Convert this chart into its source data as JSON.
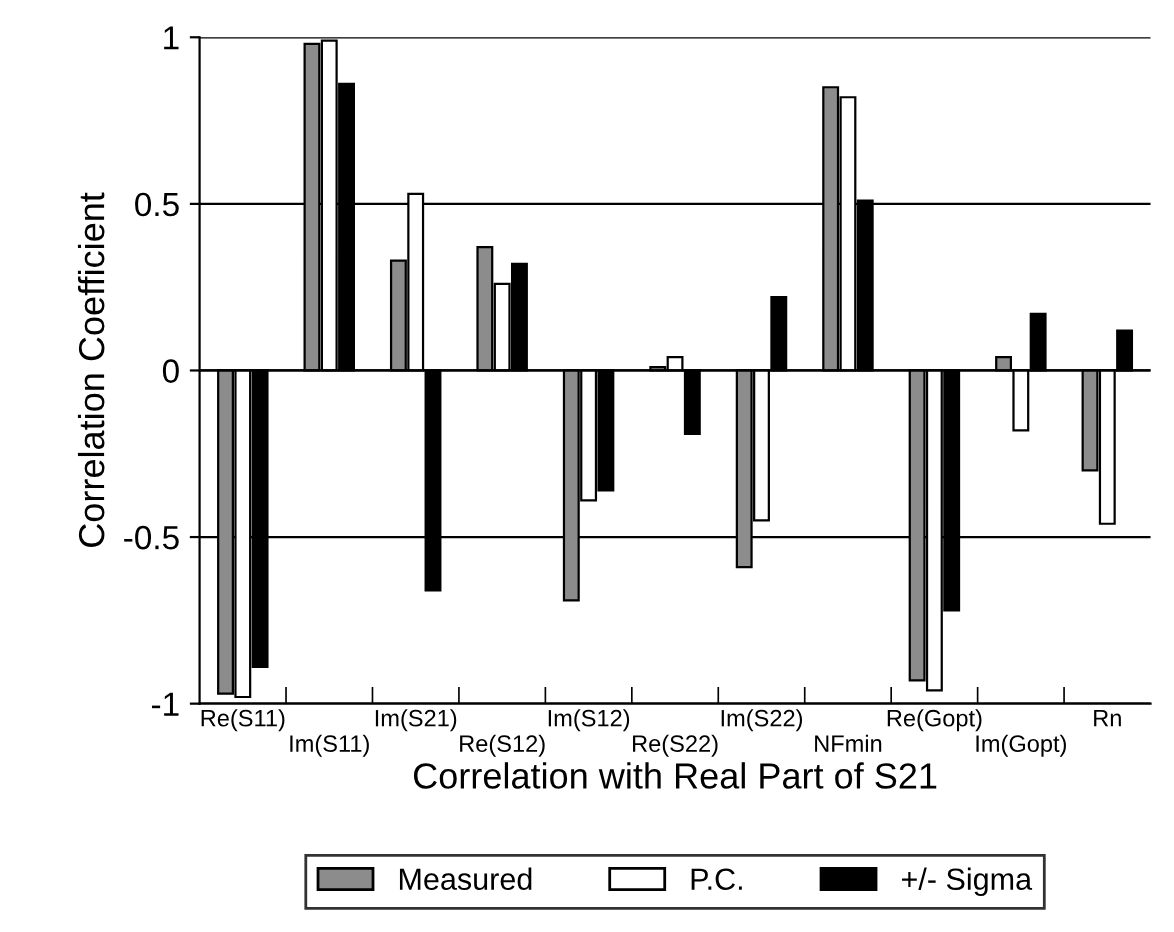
{
  "chart_data": {
    "type": "bar",
    "xlabel": "Correlation with Real Part of S21",
    "ylabel": "Correlation Coefficient",
    "categories": [
      "Re(S11)",
      "Im(S11)",
      "Im(S21)",
      "Re(S12)",
      "Im(S12)",
      "Re(S22)",
      "Im(S22)",
      "NFmin",
      "Re(Gopt)",
      "Im(Gopt)",
      "Rn"
    ],
    "series": [
      {
        "name": "Measured",
        "color": "#8c8c8c",
        "values": [
          -0.97,
          0.98,
          0.33,
          0.37,
          -0.69,
          0.01,
          -0.59,
          0.85,
          -0.93,
          0.04,
          -0.3
        ]
      },
      {
        "name": "P.C.",
        "color": "#ffffff",
        "values": [
          -0.98,
          0.99,
          0.53,
          0.26,
          -0.39,
          0.04,
          -0.45,
          0.82,
          -0.96,
          -0.18,
          -0.46
        ]
      },
      {
        "name": "+/- Sigma",
        "color": "#000000",
        "values": [
          -0.89,
          0.86,
          -0.66,
          0.32,
          -0.36,
          -0.19,
          0.22,
          0.51,
          -0.72,
          0.17,
          0.12
        ]
      }
    ],
    "ylim": [
      -1,
      1
    ],
    "yticks": [
      -1,
      -0.5,
      0,
      0.5,
      1
    ],
    "grid": "y",
    "legend": "bottom"
  }
}
